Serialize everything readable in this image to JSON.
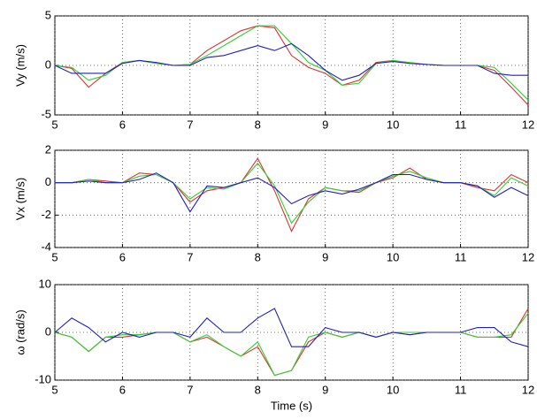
{
  "chart_data": [
    {
      "type": "line",
      "ylabel": "Vy (m/s)",
      "xlim": [
        5,
        12
      ],
      "xticks": [
        5,
        6,
        7,
        8,
        9,
        10,
        11,
        12
      ],
      "ylim": [
        -5,
        5
      ],
      "yticks": [
        -5,
        0,
        5
      ],
      "grid": true,
      "x": [
        5,
        5.25,
        5.5,
        5.75,
        6,
        6.25,
        6.5,
        6.75,
        7,
        7.25,
        7.5,
        7.75,
        8,
        8.25,
        8.5,
        8.75,
        9,
        9.25,
        9.5,
        9.75,
        10,
        10.25,
        10.5,
        10.75,
        11,
        11.25,
        11.5,
        11.75,
        12
      ],
      "series": [
        {
          "color": "#e03030",
          "values": [
            0,
            -0.3,
            -2.2,
            -0.8,
            0.3,
            0.5,
            0.2,
            0,
            0.1,
            1.5,
            2.5,
            3.5,
            4,
            3.8,
            1,
            -0.2,
            -0.8,
            -2,
            -1.5,
            0.3,
            0.5,
            0.2,
            0.1,
            0,
            0,
            0,
            -0.5,
            -2.2,
            -4
          ]
        },
        {
          "color": "#30d030",
          "values": [
            0,
            -0.2,
            -1.5,
            -1,
            0.3,
            0.5,
            0.2,
            0,
            0.1,
            1,
            2,
            3,
            4,
            4,
            2.2,
            0.3,
            -0.5,
            -2,
            -1.8,
            0.2,
            0.5,
            0.3,
            0.1,
            0,
            0,
            0,
            -0.2,
            -1.8,
            -3.5
          ]
        },
        {
          "color": "#2020c0",
          "values": [
            0,
            -0.8,
            -0.8,
            -0.8,
            0.2,
            0.5,
            0.3,
            0,
            0,
            0.8,
            1,
            1.5,
            2,
            1.5,
            2.2,
            1,
            -0.5,
            -1.5,
            -1,
            0.2,
            0.4,
            0.2,
            0.1,
            0,
            0,
            0,
            -0.8,
            -1,
            -1
          ]
        }
      ]
    },
    {
      "type": "line",
      "ylabel": "Vx (m/s)",
      "xlim": [
        5,
        12
      ],
      "xticks": [
        5,
        6,
        7,
        8,
        9,
        10,
        11,
        12
      ],
      "ylim": [
        -4,
        2
      ],
      "yticks": [
        -4,
        -2,
        0,
        2
      ],
      "grid": true,
      "x": [
        5,
        5.25,
        5.5,
        5.75,
        6,
        6.25,
        6.5,
        6.75,
        7,
        7.25,
        7.5,
        7.75,
        8,
        8.25,
        8.5,
        8.75,
        9,
        9.25,
        9.5,
        9.75,
        10,
        10.25,
        10.5,
        10.75,
        11,
        11.25,
        11.5,
        11.75,
        12
      ],
      "series": [
        {
          "color": "#e03030",
          "values": [
            0,
            0,
            0.2,
            0.1,
            0,
            0.6,
            0.5,
            0,
            -1.2,
            -0.5,
            -0.3,
            0,
            1.5,
            -0.5,
            -3,
            -1,
            -0.3,
            -0.5,
            -0.6,
            0,
            0.3,
            0.9,
            0.2,
            0,
            0,
            -0.3,
            -0.5,
            0.5,
            0
          ]
        },
        {
          "color": "#30d030",
          "values": [
            0,
            0,
            0.2,
            0,
            0,
            0.4,
            0.5,
            0,
            -1,
            -0.3,
            -0.4,
            0,
            1.2,
            -0.2,
            -2.5,
            -1.2,
            -0.3,
            -0.5,
            -0.5,
            0,
            0.4,
            0.7,
            0.3,
            0,
            0,
            -0.2,
            -0.8,
            0.3,
            -0.2
          ]
        },
        {
          "color": "#2020c0",
          "values": [
            0,
            0,
            0.1,
            0,
            0,
            0.2,
            0.6,
            0,
            -1.8,
            -0.2,
            -0.3,
            0,
            0.3,
            -0.3,
            -1.3,
            -0.8,
            -0.5,
            -0.7,
            -0.4,
            0,
            0.5,
            0.5,
            0.2,
            0,
            0,
            -0.2,
            -0.9,
            -0.3,
            -0.8
          ]
        }
      ]
    },
    {
      "type": "line",
      "ylabel": "ω (rad/s)",
      "xlabel": "Time (s)",
      "xlim": [
        5,
        12
      ],
      "xticks": [
        5,
        6,
        7,
        8,
        9,
        10,
        11,
        12
      ],
      "ylim": [
        -10,
        10
      ],
      "yticks": [
        -10,
        0,
        10
      ],
      "grid": true,
      "x": [
        5,
        5.25,
        5.5,
        5.75,
        6,
        6.25,
        6.5,
        6.75,
        7,
        7.25,
        7.5,
        7.75,
        8,
        8.25,
        8.5,
        8.75,
        9,
        9.25,
        9.5,
        9.75,
        10,
        10.25,
        10.5,
        10.75,
        11,
        11.25,
        11.5,
        11.75,
        12
      ],
      "series": [
        {
          "color": "#e03030",
          "values": [
            0,
            -1,
            -4,
            -1,
            -1,
            -0.5,
            0,
            0,
            -2,
            -1,
            -3,
            -5,
            -3,
            -9,
            -8,
            -2,
            0,
            -1,
            0,
            -1,
            0,
            -0.5,
            0,
            0,
            0,
            -1,
            -1,
            -1,
            5
          ]
        },
        {
          "color": "#30d030",
          "values": [
            0,
            -1,
            -4,
            -1,
            -0.5,
            -0.5,
            0,
            0,
            -2,
            -0.5,
            -3,
            -5,
            -2,
            -9,
            -8,
            -1,
            0,
            -1,
            0,
            -1,
            0,
            0,
            0,
            0,
            0,
            -1,
            -1,
            -0.5,
            4
          ]
        },
        {
          "color": "#2020c0",
          "values": [
            0,
            3,
            1,
            -2,
            0,
            -1,
            0,
            0,
            -1,
            3,
            0,
            0,
            3,
            5,
            -3,
            -3,
            1,
            0,
            0,
            -1,
            0,
            -0.5,
            0,
            0,
            0,
            1,
            1,
            -2,
            -3
          ]
        }
      ]
    }
  ]
}
